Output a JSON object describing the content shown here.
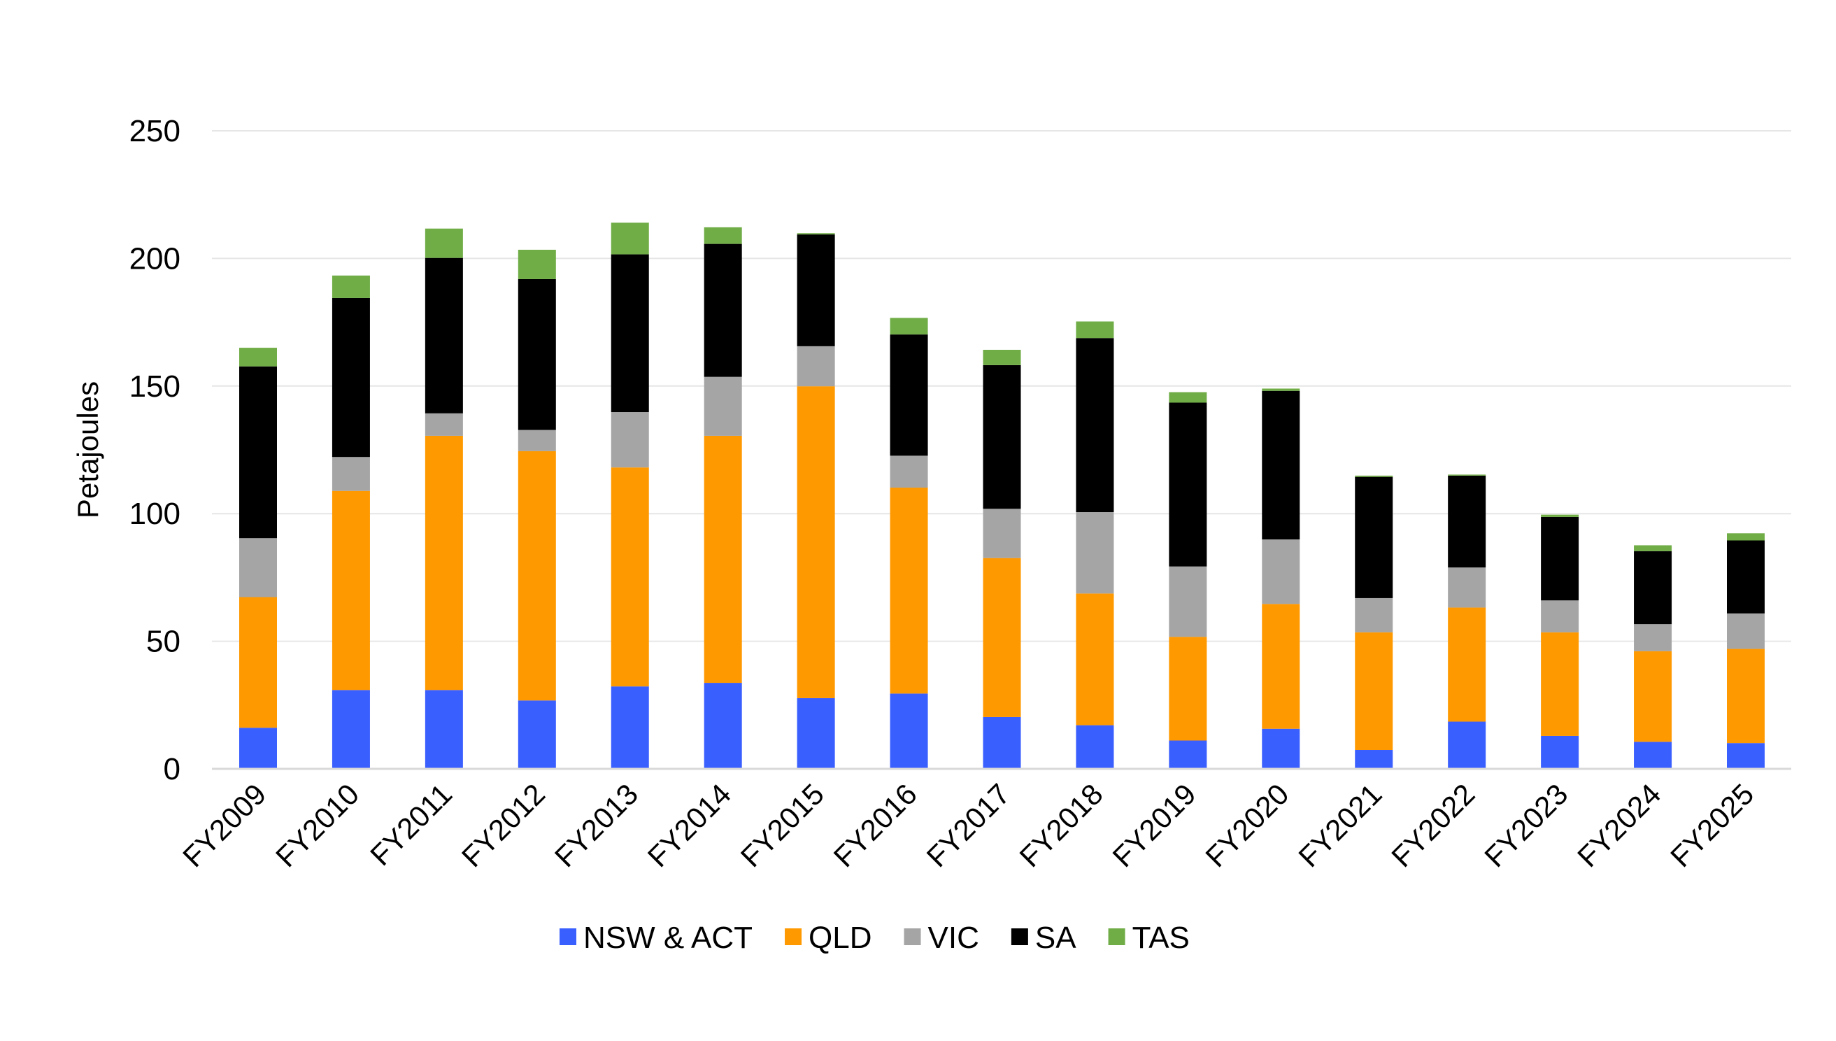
{
  "chart_data": {
    "type": "bar",
    "stacked": true,
    "title": "",
    "xlabel": "",
    "ylabel": "Petajoules",
    "ylim": [
      0,
      250
    ],
    "yticks": [
      0,
      50,
      100,
      150,
      200,
      250
    ],
    "grid": true,
    "legend_position": "bottom",
    "categories": [
      "FY2009",
      "FY2010",
      "FY2011",
      "FY2012",
      "FY2013",
      "FY2014",
      "FY2015",
      "FY2016",
      "FY2017",
      "FY2018",
      "FY2019",
      "FY2020",
      "FY2021",
      "FY2022",
      "FY2023",
      "FY2024",
      "FY2025"
    ],
    "series": [
      {
        "name": "NSW & ACT",
        "color": "#3A5FFF",
        "values": [
          16.1,
          30.9,
          30.9,
          26.8,
          32.3,
          33.7,
          27.7,
          29.5,
          20.3,
          17.1,
          11.1,
          15.7,
          7.4,
          18.5,
          12.9,
          10.6,
          10.1
        ]
      },
      {
        "name": "QLD",
        "color": "#FF9900",
        "values": [
          51.2,
          78.0,
          99.6,
          97.7,
          85.8,
          96.8,
          122.2,
          80.7,
          62.3,
          51.6,
          40.6,
          48.9,
          46.1,
          44.7,
          40.6,
          35.5,
          36.9
        ]
      },
      {
        "name": "VIC",
        "color": "#A5A5A5",
        "values": [
          23.1,
          13.3,
          8.8,
          8.3,
          21.7,
          23.1,
          15.7,
          12.5,
          19.3,
          31.9,
          27.6,
          25.3,
          13.4,
          15.7,
          12.5,
          10.6,
          13.9
        ]
      },
      {
        "name": "SA",
        "color": "#000000",
        "values": [
          67.3,
          62.3,
          60.9,
          59.1,
          61.8,
          52.1,
          43.8,
          47.5,
          56.3,
          68.2,
          64.2,
          58.2,
          47.5,
          36.0,
          32.7,
          28.6,
          28.6
        ]
      },
      {
        "name": "TAS",
        "color": "#70AD47",
        "values": [
          7.3,
          8.8,
          11.5,
          11.5,
          12.4,
          6.5,
          0.5,
          6.5,
          6.0,
          6.5,
          4.1,
          0.9,
          0.5,
          0.4,
          0.9,
          2.3,
          2.8
        ]
      }
    ]
  }
}
